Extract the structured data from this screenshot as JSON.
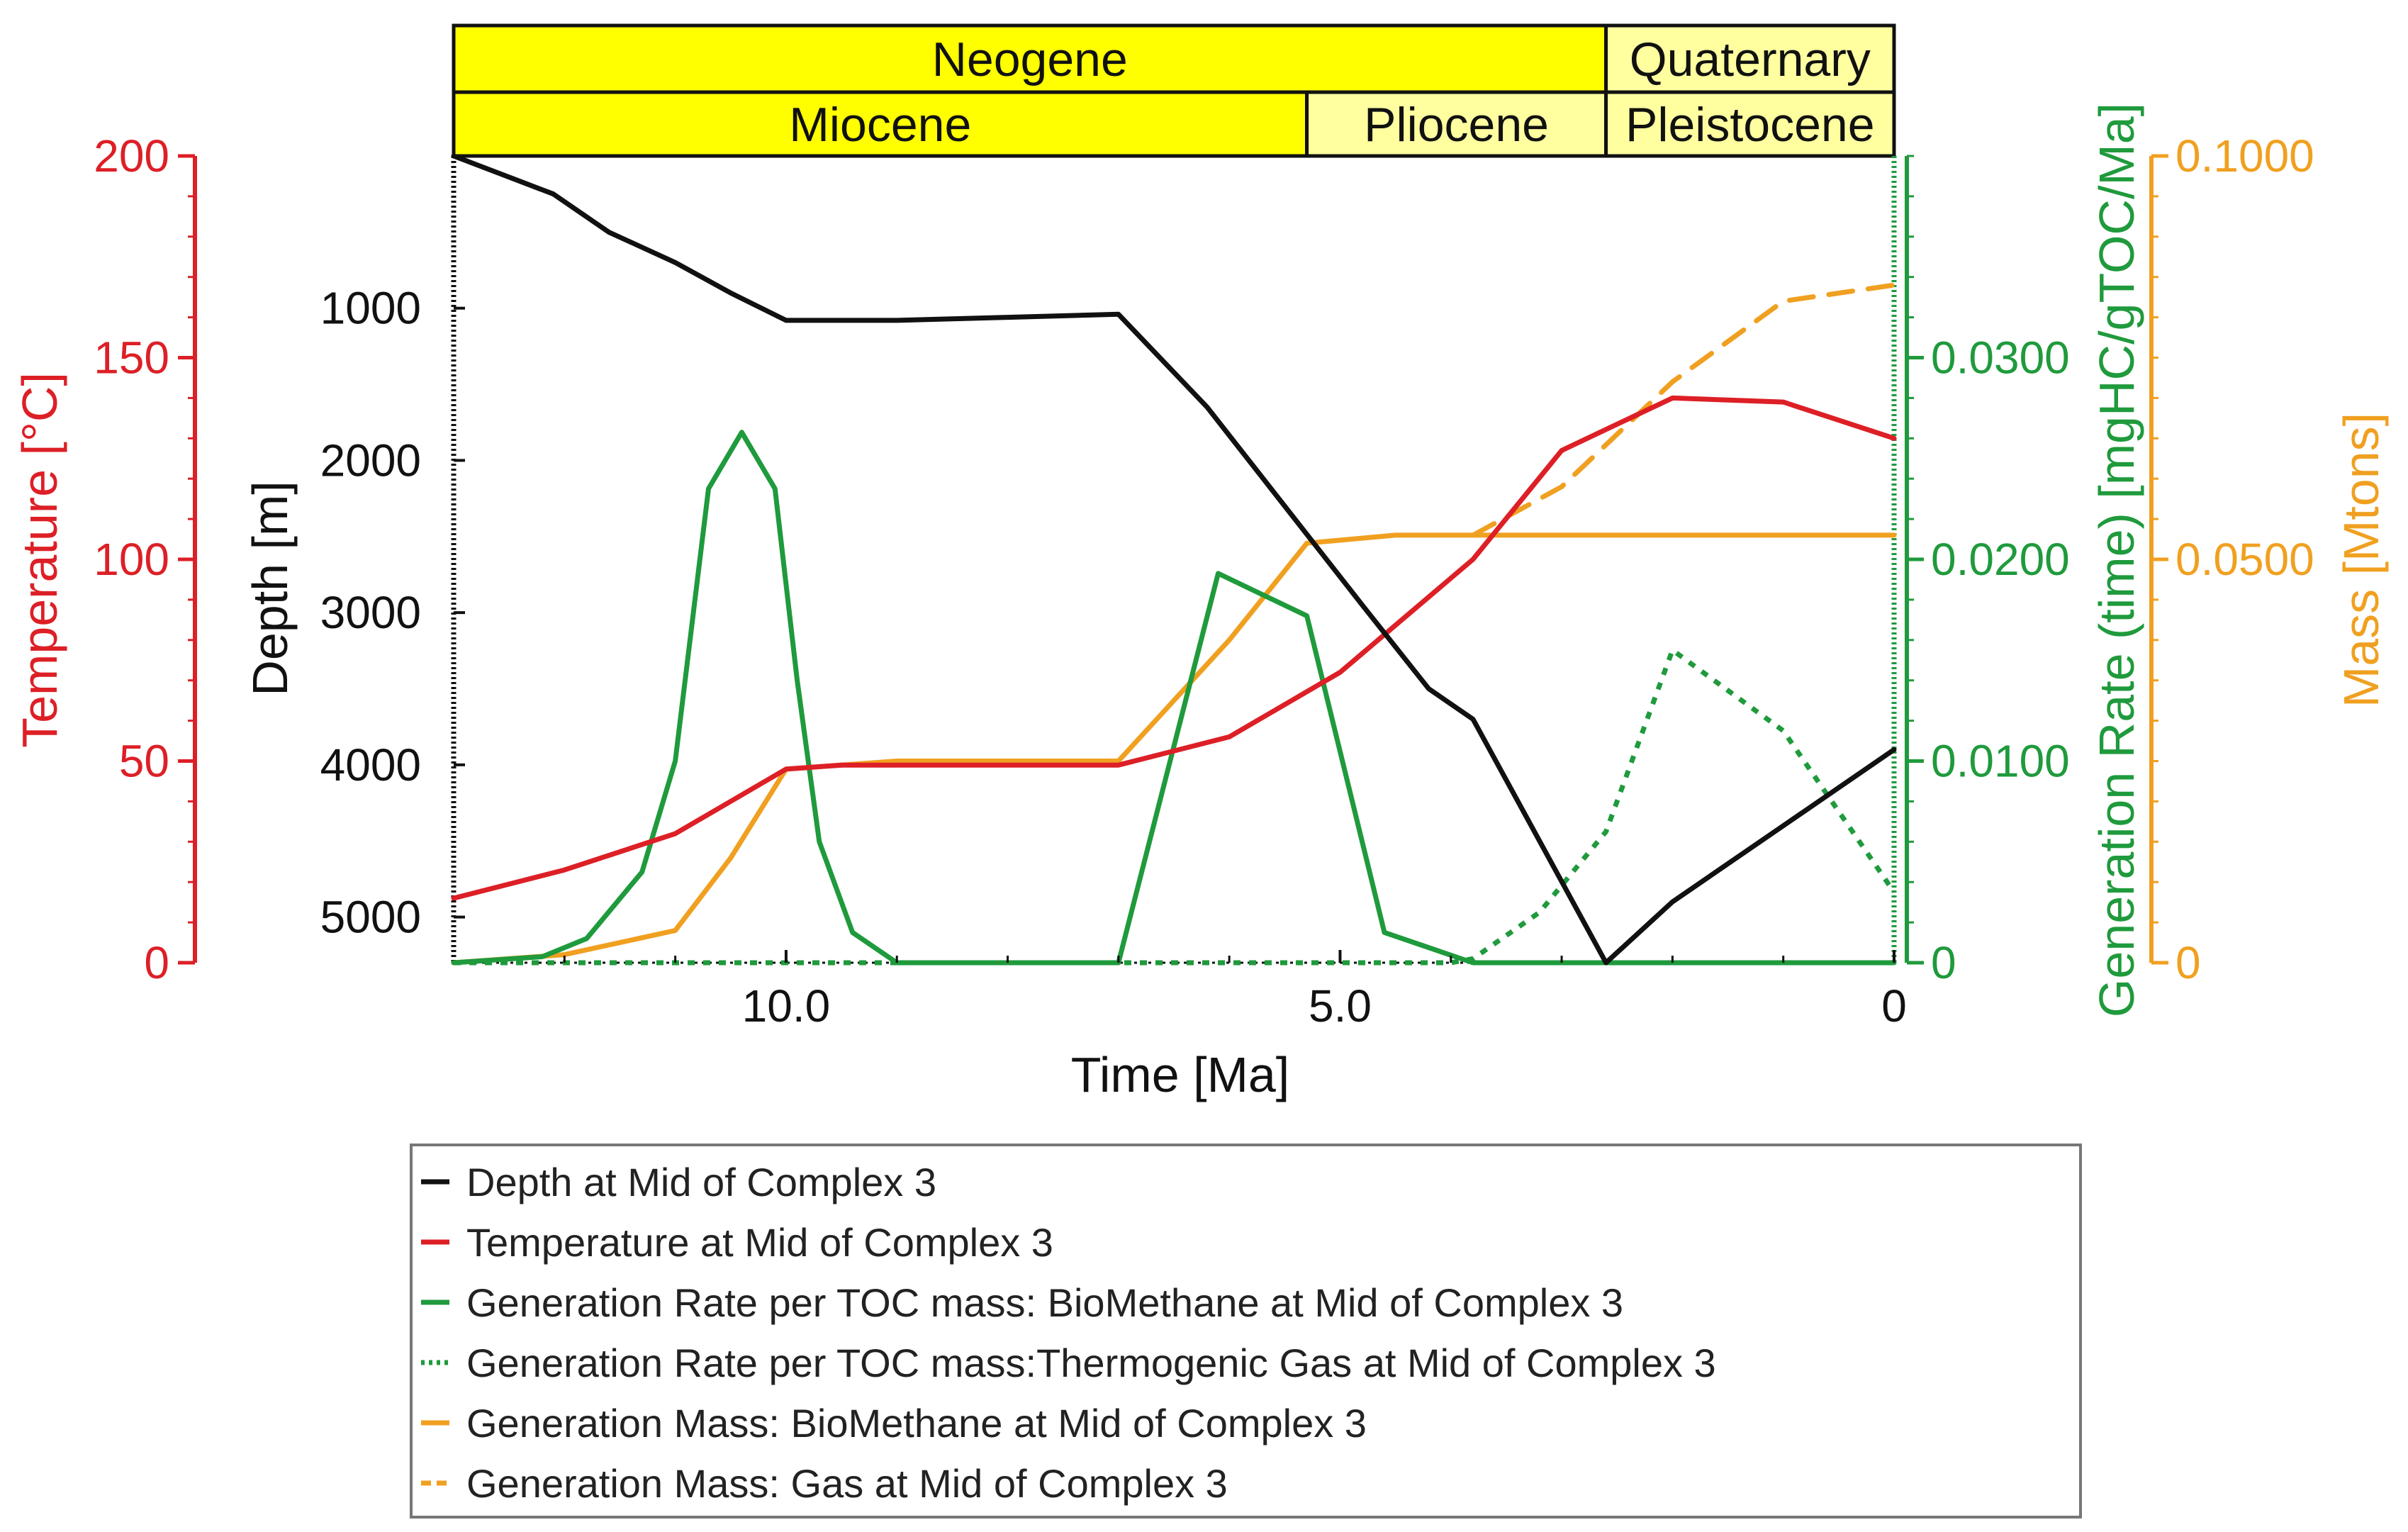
{
  "colors": {
    "depth": "#111111",
    "temperature": "#dd1f26",
    "generation_rate": "#1f9a3c",
    "mass": "#f0a020",
    "period_fill": "#ffff00",
    "period_fill_light": "#ffffa0"
  },
  "periods": {
    "top_row": [
      {
        "label": "Neogene",
        "from": 13.0,
        "to": 2.6,
        "shade": "strong"
      },
      {
        "label": "Quaternary",
        "from": 2.6,
        "to": 0.0,
        "shade": "light"
      }
    ],
    "bottom_row": [
      {
        "label": "Miocene",
        "from": 13.0,
        "to": 5.3,
        "shade": "strong"
      },
      {
        "label": "Pliocene",
        "from": 5.3,
        "to": 2.6,
        "shade": "light"
      },
      {
        "label": "Pleistocene",
        "from": 2.6,
        "to": 0.0,
        "shade": "light"
      }
    ]
  },
  "chart_data": {
    "type": "line",
    "xlabel": "Time [Ma]",
    "xlim": [
      13.0,
      0.0
    ],
    "x_ticks": [
      {
        "value": 10.0,
        "label": "10.0"
      },
      {
        "value": 5.0,
        "label": "5.0"
      },
      {
        "value": 0.0,
        "label": "0"
      }
    ],
    "axes": {
      "depth": {
        "label": "Depth [m]",
        "range": [
          0,
          5300
        ],
        "inverted": true,
        "ticks": [
          {
            "value": 1000,
            "label": "1000"
          },
          {
            "value": 2000,
            "label": "2000"
          },
          {
            "value": 3000,
            "label": "3000"
          },
          {
            "value": 4000,
            "label": "4000"
          },
          {
            "value": 5000,
            "label": "5000"
          }
        ]
      },
      "temperature": {
        "label": "Temperature [°C]",
        "range": [
          0,
          200
        ],
        "ticks": [
          {
            "value": 0,
            "label": "0"
          },
          {
            "value": 50,
            "label": "50"
          },
          {
            "value": 100,
            "label": "100"
          },
          {
            "value": 150,
            "label": "150"
          },
          {
            "value": 200,
            "label": "200"
          }
        ]
      },
      "rate": {
        "label": "Generation Rate (time) [mgHC/gTOC/Ma]",
        "range": [
          0,
          0.04
        ],
        "ticks": [
          {
            "value": 0,
            "label": "0"
          },
          {
            "value": 0.01,
            "label": "0.0100"
          },
          {
            "value": 0.02,
            "label": "0.0200"
          },
          {
            "value": 0.03,
            "label": "0.0300"
          }
        ]
      },
      "mass": {
        "label": "Mass [Mtons]",
        "range": [
          0,
          0.1
        ],
        "ticks": [
          {
            "value": 0,
            "label": "0"
          },
          {
            "value": 0.05,
            "label": "0.0500"
          },
          {
            "value": 0.1,
            "label": "0.1000"
          }
        ]
      }
    },
    "series": [
      {
        "key": "depth",
        "name": "Depth at Mid of Complex 3",
        "axis": "depth",
        "style": "solid",
        "x": [
          13.0,
          12.1,
          11.6,
          11.0,
          10.5,
          10.0,
          9.0,
          8.0,
          7.0,
          6.2,
          5.5,
          4.8,
          4.2,
          3.8,
          3.2,
          2.6,
          2.0,
          1.0,
          0.0
        ],
        "y": [
          0,
          250,
          500,
          700,
          900,
          1080,
          1080,
          1060,
          1040,
          1650,
          2300,
          2950,
          3500,
          3700,
          4500,
          5300,
          4900,
          4400,
          3900
        ]
      },
      {
        "key": "temperature",
        "name": "Temperature at Mid of Complex 3",
        "axis": "temperature",
        "style": "solid",
        "x": [
          13.0,
          12.0,
          11.0,
          10.5,
          10.0,
          9.5,
          8.0,
          7.0,
          6.0,
          5.0,
          3.8,
          3.0,
          2.0,
          1.0,
          0.0
        ],
        "y": [
          16,
          23,
          32,
          40,
          48,
          49,
          49,
          49,
          56,
          72,
          100,
          127,
          140,
          139,
          130
        ]
      },
      {
        "key": "biomethane_rate",
        "name": "Generation Rate per TOC mass: BioMethane at Mid of Complex 3",
        "axis": "rate",
        "style": "solid",
        "x": [
          13.0,
          12.2,
          11.8,
          11.3,
          11.0,
          10.7,
          10.4,
          10.1,
          9.9,
          9.7,
          9.4,
          9.0,
          8.0,
          7.0,
          6.1,
          5.3,
          4.6,
          3.8,
          3.0,
          0.0
        ],
        "y": [
          0,
          0.0003,
          0.0012,
          0.0045,
          0.01,
          0.0235,
          0.0263,
          0.0235,
          0.014,
          0.006,
          0.0015,
          0,
          0,
          0,
          0.0193,
          0.0172,
          0.0015,
          0,
          0,
          0
        ]
      },
      {
        "key": "thermogenic_rate",
        "name": "Generation Rate per TOC mass:Thermogenic Gas at Mid of Complex 3",
        "axis": "rate",
        "style": "dotted",
        "x": [
          13.0,
          4.0,
          3.8,
          3.2,
          2.6,
          2.0,
          1.0,
          0.0
        ],
        "y": [
          0,
          0,
          0.0002,
          0.0025,
          0.0065,
          0.0155,
          0.0115,
          0.0035
        ]
      },
      {
        "key": "biomethane_mass",
        "name": "Generation Mass: BioMethane at Mid of Complex 3",
        "axis": "mass",
        "style": "solid",
        "x": [
          13.0,
          12.0,
          11.0,
          10.5,
          10.0,
          9.0,
          8.0,
          7.0,
          6.0,
          5.3,
          4.5,
          3.0,
          0.0
        ],
        "y": [
          0,
          0.001,
          0.004,
          0.013,
          0.024,
          0.025,
          0.025,
          0.025,
          0.04,
          0.052,
          0.053,
          0.053,
          0.053
        ]
      },
      {
        "key": "gas_mass",
        "name": "Generation Mass: Gas at Mid of Complex 3",
        "axis": "mass",
        "style": "dashed",
        "x": [
          3.8,
          3.0,
          2.0,
          1.0,
          0.0
        ],
        "y": [
          0.053,
          0.059,
          0.072,
          0.082,
          0.084
        ]
      }
    ],
    "legend_position": "bottom",
    "legend_items": [
      {
        "key": "depth",
        "label": "Depth at Mid of Complex 3",
        "style": "solid"
      },
      {
        "key": "temperature",
        "label": "Temperature at Mid of Complex 3",
        "style": "solid"
      },
      {
        "key": "generation_rate",
        "label": "Generation Rate per TOC mass: BioMethane at Mid of Complex 3",
        "style": "solid"
      },
      {
        "key": "generation_rate",
        "label": "Generation Rate per TOC mass:Thermogenic Gas at Mid of Complex 3",
        "style": "dotted"
      },
      {
        "key": "mass",
        "label": "Generation Mass: BioMethane at Mid of Complex 3",
        "style": "solid"
      },
      {
        "key": "mass",
        "label": "Generation Mass: Gas at Mid of Complex 3",
        "style": "dashed"
      }
    ]
  }
}
